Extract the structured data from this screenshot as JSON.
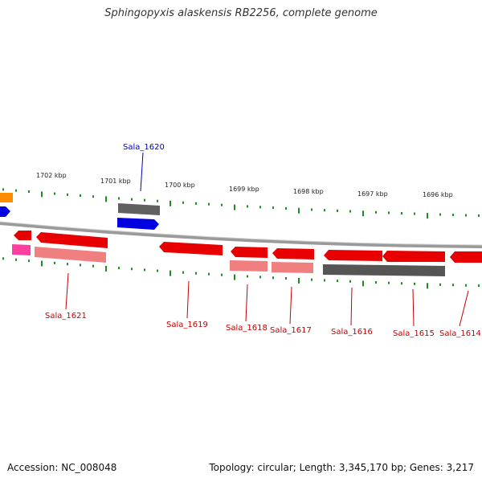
{
  "title": "Sphingopyxis alaskensis RB2256, complete genome",
  "footer": {
    "accession": "Accession: NC_008048",
    "topology": "Topology: circular; Length: 3,345,170 bp; Genes: 3,217"
  },
  "colors": {
    "backbone": "#8c8c8c",
    "tick": "#1e8c1e",
    "gene_red": "#e80000",
    "gene_pink": "#f08080",
    "gene_magenta": "#ff3fa0",
    "gene_gray": "#555555",
    "gene_blue": "#0000e0",
    "gene_orange": "#ff8c00",
    "label_red": "#c80000",
    "label_blue": "#0000c0"
  },
  "kbp_ticks": [
    "1702 kbp",
    "1701 kbp",
    "1700 kbp",
    "1699 kbp",
    "1698 kbp",
    "1697 kbp",
    "1696 kbp"
  ],
  "gene_labels": [
    {
      "name": "Sala_1620",
      "color": "blue"
    },
    {
      "name": "Sala_1621",
      "color": "red"
    },
    {
      "name": "Sala_1619",
      "color": "red"
    },
    {
      "name": "Sala_1618",
      "color": "red"
    },
    {
      "name": "Sala_1617",
      "color": "red"
    },
    {
      "name": "Sala_1616",
      "color": "red"
    },
    {
      "name": "Sala_1615",
      "color": "red"
    },
    {
      "name": "Sala_1614",
      "color": "red"
    }
  ]
}
